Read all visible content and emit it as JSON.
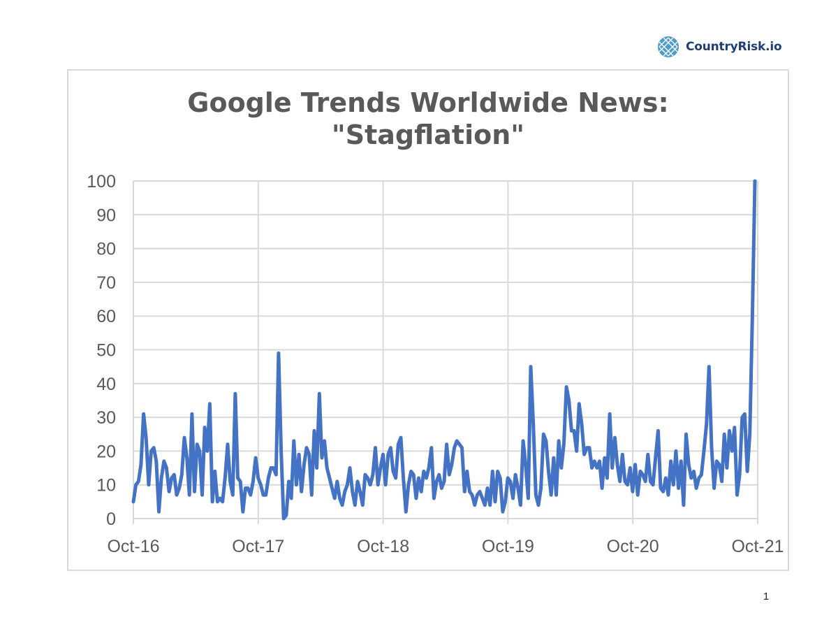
{
  "brand": {
    "name": "CountryRisk.io",
    "logo_icon": "globe-grid-icon",
    "color": "#1f3f73",
    "accent": "#2e8bc0"
  },
  "page_number": "1",
  "chart_data": {
    "type": "line",
    "title_line1": "Google Trends Worldwide News:",
    "title_line2": "\"Stagflation\"",
    "xlabel": "",
    "ylabel": "",
    "ylim": [
      0,
      100
    ],
    "yticks": [
      "0",
      "10",
      "20",
      "30",
      "40",
      "50",
      "60",
      "70",
      "80",
      "90",
      "100"
    ],
    "xticks": [
      "Oct-16",
      "Oct-17",
      "Oct-18",
      "Oct-19",
      "Oct-20",
      "Oct-21"
    ],
    "grid": true,
    "legend": "none",
    "line_color": "#4472c4",
    "series": [
      {
        "values": [
          5,
          10,
          11,
          16,
          31,
          24,
          10,
          20,
          21,
          17,
          2,
          12,
          17,
          15,
          8,
          12,
          13,
          7,
          9,
          13,
          24,
          18,
          7,
          31,
          8,
          22,
          20,
          7,
          27,
          20,
          34,
          5,
          14,
          5,
          6,
          5,
          12,
          22,
          11,
          7,
          37,
          12,
          11,
          2,
          9,
          9,
          7,
          11,
          18,
          12,
          10,
          7,
          7,
          12,
          15,
          15,
          13,
          49,
          20,
          0,
          1,
          11,
          6,
          23,
          10,
          19,
          8,
          16,
          21,
          19,
          7,
          26,
          15,
          37,
          18,
          23,
          15,
          12,
          9,
          6,
          11,
          6,
          4,
          8,
          10,
          15,
          8,
          4,
          11,
          8,
          4,
          13,
          12,
          10,
          13,
          21,
          10,
          15,
          19,
          10,
          19,
          21,
          14,
          12,
          22,
          24,
          12,
          2,
          10,
          14,
          13,
          6,
          12,
          8,
          14,
          12,
          15,
          21,
          6,
          11,
          13,
          9,
          11,
          22,
          13,
          16,
          21,
          23,
          22,
          21,
          8,
          14,
          8,
          7,
          4,
          7,
          8,
          6,
          4,
          9,
          4,
          14,
          5,
          14,
          12,
          2,
          5,
          12,
          11,
          6,
          13,
          9,
          4,
          23,
          16,
          6,
          45,
          28,
          7,
          4,
          9,
          25,
          23,
          14,
          7,
          18,
          7,
          23,
          15,
          22,
          39,
          35,
          26,
          26,
          20,
          34,
          28,
          19,
          21,
          21,
          15,
          17,
          15,
          17,
          9,
          18,
          12,
          31,
          15,
          24,
          16,
          11,
          19,
          11,
          10,
          15,
          8,
          16,
          7,
          14,
          13,
          11,
          19,
          11,
          10,
          18,
          26,
          9,
          8,
          12,
          7,
          17,
          10,
          20,
          9,
          17,
          4,
          25,
          16,
          12,
          14,
          9,
          12,
          13,
          20,
          28,
          45,
          21,
          9,
          17,
          16,
          11,
          25,
          15,
          26,
          20,
          27,
          7,
          13,
          30,
          31,
          14,
          25,
          60,
          100
        ]
      }
    ]
  }
}
